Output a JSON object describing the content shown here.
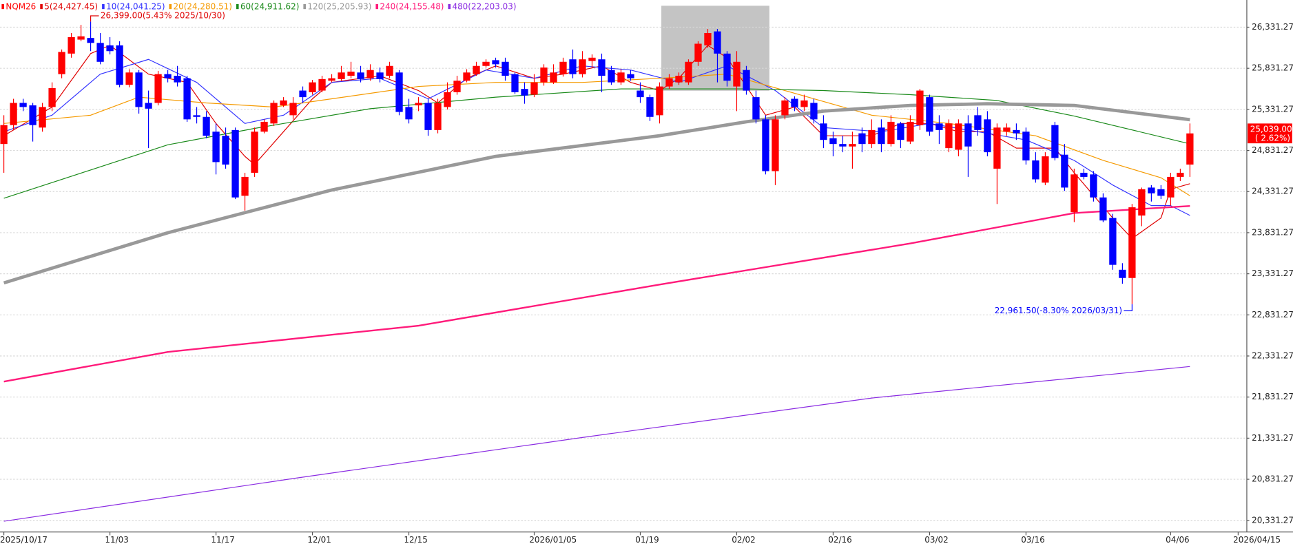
{
  "chart_data": {
    "type": "candlestick",
    "symbol": "NQM26",
    "open": [
      24910,
      25140,
      25410,
      25380,
      25110,
      25360,
      25760,
      26010,
      26180,
      26200,
      26140,
      26110,
      26110,
      25630,
      25780,
      25410,
      25410,
      25760,
      25740,
      25710,
      25260,
      25240,
      25060,
      25010,
      25080,
      24280,
      24560,
      25060,
      25160,
      25380,
      25260,
      25560,
      25540,
      25560,
      25680,
      25700,
      25740,
      25780,
      25710,
      25780,
      25740,
      25780,
      25360,
      25380,
      25410,
      25080,
      25360,
      25540,
      25680,
      25760,
      25860,
      25930,
      25910,
      25760,
      25580,
      25510,
      25660,
      25660,
      25760,
      25940,
      25760,
      25920,
      25940,
      25810,
      25660,
      25760,
      25560,
      25480,
      25260,
      25610,
      25660,
      25660,
      25910,
      26110,
      26280,
      26010,
      25610,
      25810,
      25480,
      25210,
      24580,
      25260,
      25460,
      25360,
      25410,
      25160,
      24980,
      24910,
      24880,
      25040,
      24910,
      25110,
      24910,
      25160,
      24940,
      25140,
      25480,
      25160,
      24860,
      24840,
      25160,
      25260,
      25210,
      24610,
      25060,
      25080,
      25060,
      24710,
      24440,
      25140,
      24780,
      24080,
      24560,
      24540,
      24260,
      24010,
      23380,
      23280,
      24040,
      24380,
      24360,
      24260,
      24510,
      24660
    ],
    "high": [
      25260,
      25460,
      25460,
      25410,
      25410,
      25660,
      26060,
      26260,
      26360,
      26399,
      26260,
      26210,
      26160,
      25820,
      25810,
      25560,
      25800,
      25810,
      25860,
      25740,
      25360,
      25310,
      25160,
      25110,
      25110,
      24560,
      25110,
      25210,
      25440,
      25480,
      25480,
      25610,
      25690,
      25740,
      25760,
      25860,
      25910,
      25860,
      25880,
      25840,
      25910,
      25810,
      25460,
      25480,
      25460,
      25460,
      25660,
      25740,
      25820,
      25910,
      25940,
      25960,
      25960,
      25780,
      25660,
      25760,
      25880,
      25880,
      25960,
      26060,
      26040,
      26000,
      26010,
      25860,
      25820,
      25810,
      25660,
      25510,
      25660,
      25760,
      25780,
      25940,
      26160,
      26310,
      26310,
      26040,
      26040,
      25860,
      25560,
      25260,
      25260,
      25480,
      25490,
      25510,
      25460,
      25260,
      25060,
      25010,
      25060,
      25110,
      25210,
      25210,
      25260,
      25180,
      25260,
      25580,
      25510,
      25260,
      25210,
      25210,
      25260,
      25360,
      25310,
      25160,
      25160,
      25160,
      25110,
      24810,
      24810,
      25180,
      24910,
      24610,
      24610,
      24580,
      24310,
      24060,
      23460,
      24180,
      24380,
      24410,
      24410,
      24560,
      24610,
      25160
    ],
    "low": [
      24560,
      25080,
      25310,
      24940,
      25060,
      25310,
      25710,
      25960,
      26160,
      26040,
      25880,
      26000,
      25600,
      25600,
      25280,
      24860,
      25380,
      25660,
      25610,
      25180,
      25160,
      24980,
      24540,
      24610,
      24240,
      24100,
      24510,
      25040,
      25130,
      25360,
      25210,
      25410,
      25510,
      25540,
      25660,
      25680,
      25710,
      25660,
      25680,
      25660,
      25710,
      25260,
      25160,
      25310,
      25010,
      25040,
      25330,
      25510,
      25660,
      25740,
      25840,
      25840,
      25680,
      25520,
      25400,
      25480,
      25620,
      25640,
      25730,
      25710,
      25720,
      25840,
      25540,
      25630,
      25630,
      25680,
      25410,
      25190,
      25160,
      25580,
      25630,
      25630,
      25860,
      26080,
      25660,
      25610,
      25310,
      25510,
      25160,
      24540,
      24410,
      25210,
      25310,
      25310,
      25160,
      24860,
      24760,
      24810,
      24610,
      24810,
      24860,
      24810,
      24880,
      24860,
      24910,
      25080,
      25010,
      24910,
      24810,
      24760,
      24510,
      25010,
      24760,
      24180,
      25010,
      24960,
      24660,
      24440,
      24410,
      24710,
      24340,
      23960,
      24480,
      24210,
      23960,
      23380,
      23210,
      22961.5,
      23910,
      24210,
      24240,
      24160,
      24460,
      24510
    ],
    "close": [
      25140,
      25410,
      25360,
      25140,
      25360,
      25590,
      26030,
      26210,
      26220,
      26140,
      25910,
      26040,
      25630,
      25780,
      25360,
      25340,
      25760,
      25710,
      25660,
      25210,
      25240,
      25010,
      24690,
      24660,
      24260,
      24510,
      25060,
      25180,
      25410,
      25440,
      25410,
      25480,
      25660,
      25700,
      25710,
      25780,
      25790,
      25700,
      25810,
      25700,
      25860,
      25300,
      25210,
      25410,
      25080,
      25410,
      25540,
      25680,
      25780,
      25860,
      25910,
      25880,
      25740,
      25540,
      25500,
      25660,
      25840,
      25780,
      25910,
      25760,
      25940,
      25960,
      25740,
      25660,
      25780,
      25710,
      25480,
      25240,
      25610,
      25710,
      25740,
      25910,
      26130,
      26260,
      26010,
      25680,
      25910,
      25560,
      25210,
      24580,
      25210,
      25440,
      25360,
      25440,
      25210,
      24960,
      24910,
      24880,
      24910,
      24910,
      25080,
      24910,
      25180,
      24960,
      25180,
      25560,
      25060,
      25080,
      25160,
      25160,
      24880,
      25080,
      24810,
      25110,
      25110,
      25040,
      24710,
      24480,
      24760,
      24740,
      24380,
      24540,
      24510,
      24260,
      23980,
      23440,
      23280,
      24140,
      24360,
      24310,
      24280,
      24510,
      24560,
      25039
    ],
    "up_color": "#ff0000",
    "down_color": "#0000ff",
    "xlim": [
      -0.4,
      128.9
    ],
    "xticks": [
      {
        "value": 0,
        "label": "2025/10/17"
      },
      {
        "value": 11,
        "label": "11/03"
      },
      {
        "value": 22,
        "label": "11/17"
      },
      {
        "value": 32,
        "label": "12/01"
      },
      {
        "value": 42,
        "label": "12/15"
      },
      {
        "value": 55,
        "label": "2026/01/05"
      },
      {
        "value": 66,
        "label": "01/19"
      },
      {
        "value": 76,
        "label": "02/02"
      },
      {
        "value": 86,
        "label": "02/16"
      },
      {
        "value": 96,
        "label": "03/02"
      },
      {
        "value": 106,
        "label": "03/16"
      },
      {
        "value": 121,
        "label": "04/06"
      },
      {
        "value": 128,
        "label": "2026/04/15"
      }
    ],
    "ylim": [
      20190,
      26662
    ],
    "yticks": [
      {
        "value": 20331.27,
        "label": "20,331.27"
      },
      {
        "value": 20831.27,
        "label": "20,831.27"
      },
      {
        "value": 21331.27,
        "label": "21,331.27"
      },
      {
        "value": 21831.27,
        "label": "21,831.27"
      },
      {
        "value": 22331.27,
        "label": "22,331.27"
      },
      {
        "value": 22831.27,
        "label": "22,831.27"
      },
      {
        "value": 23331.27,
        "label": "23,331.27"
      },
      {
        "value": 23831.27,
        "label": "23,831.27"
      },
      {
        "value": 24331.27,
        "label": "24,331.27"
      },
      {
        "value": 24831.27,
        "label": "24,831.27"
      },
      {
        "value": 25331.27,
        "label": "25,331.27"
      },
      {
        "value": 25831.27,
        "label": "25,831.27"
      },
      {
        "value": 26331.27,
        "label": "26,331.27"
      }
    ],
    "grid": true,
    "series": [
      {
        "name": "5(24,427.45)",
        "color": "#e00000",
        "width": 1,
        "x": [
          0,
          5,
          9,
          11,
          15,
          19,
          22,
          25,
          26,
          29,
          32,
          34,
          39,
          43,
          45,
          48,
          51,
          55,
          58,
          62,
          65,
          68,
          70,
          73,
          75,
          77,
          79,
          82,
          85,
          90,
          93,
          96,
          99,
          102,
          105,
          109,
          111,
          115,
          117,
          120,
          121,
          123
        ],
        "values": [
          25010,
          25360,
          26010,
          26110,
          25760,
          25660,
          25160,
          24760,
          24660,
          25060,
          25460,
          25660,
          25740,
          25560,
          25410,
          25710,
          25860,
          25710,
          25760,
          25860,
          25660,
          25560,
          25710,
          26110,
          25960,
          25610,
          25260,
          25360,
          25010,
          25010,
          25160,
          25160,
          25060,
          25060,
          24860,
          24860,
          24560,
          24010,
          23760,
          24010,
          24360,
          24427.45
        ]
      },
      {
        "name": "10(24,041.25)",
        "color": "#3333ff",
        "width": 1,
        "x": [
          0,
          5,
          10,
          15,
          20,
          25,
          29,
          34,
          39,
          44,
          50,
          55,
          60,
          65,
          70,
          75,
          80,
          85,
          91,
          96,
          101,
          106,
          111,
          115,
          119,
          121,
          123
        ],
        "values": [
          25060,
          25260,
          25760,
          25940,
          25660,
          25160,
          25260,
          25660,
          25710,
          25460,
          25810,
          25710,
          25860,
          25810,
          25660,
          25860,
          25560,
          25110,
          25060,
          25160,
          25060,
          24960,
          24710,
          24410,
          24160,
          24160,
          24041.25
        ]
      },
      {
        "name": "20(24,280.51)",
        "color": "#f59a00",
        "width": 1,
        "x": [
          0,
          9,
          14,
          21,
          28,
          34,
          43,
          51,
          60,
          68,
          75,
          81,
          90,
          98,
          107,
          114,
          120,
          123
        ],
        "values": [
          25160,
          25260,
          25480,
          25410,
          25360,
          25460,
          25610,
          25660,
          25660,
          25710,
          25760,
          25560,
          25260,
          25160,
          25010,
          24710,
          24500,
          24280.51
        ]
      },
      {
        "name": "60(24,911.62)",
        "color": "#1a8a1a",
        "width": 1,
        "x": [
          0,
          17,
          26,
          38,
          51,
          64,
          77,
          85,
          94,
          103,
          111,
          123
        ],
        "values": [
          24250,
          24900,
          25100,
          25340,
          25480,
          25580,
          25580,
          25560,
          25510,
          25440,
          25250,
          24911.62
        ]
      },
      {
        "name": "120(25,205.93)",
        "color": "#999999",
        "width": 4,
        "x": [
          0,
          17,
          34,
          51,
          68,
          77,
          85,
          94,
          102,
          111,
          123
        ],
        "values": [
          23220,
          23830,
          24350,
          24760,
          25010,
          25180,
          25310,
          25380,
          25400,
          25380,
          25205.93
        ]
      },
      {
        "name": "240(24,155.48)",
        "color": "#ff1a7a",
        "width": 2,
        "x": [
          0,
          17,
          43,
          68,
          94,
          111,
          123
        ],
        "values": [
          22020,
          22380,
          22700,
          23200,
          23700,
          24070,
          24155.48
        ]
      },
      {
        "name": "480(22,203.03)",
        "color": "#8a2be2",
        "width": 1,
        "x": [
          0,
          30,
          60,
          90,
          123
        ],
        "values": [
          20320,
          20840,
          21340,
          21820,
          22203.03
        ]
      }
    ],
    "high_label": "26,399.00(5.43% 2025/10/30)",
    "low_label": "22,961.50(-8.30% 2026/03/31)",
    "last_price_label": "25,039.00",
    "last_change_label": "( 2.62%)"
  }
}
